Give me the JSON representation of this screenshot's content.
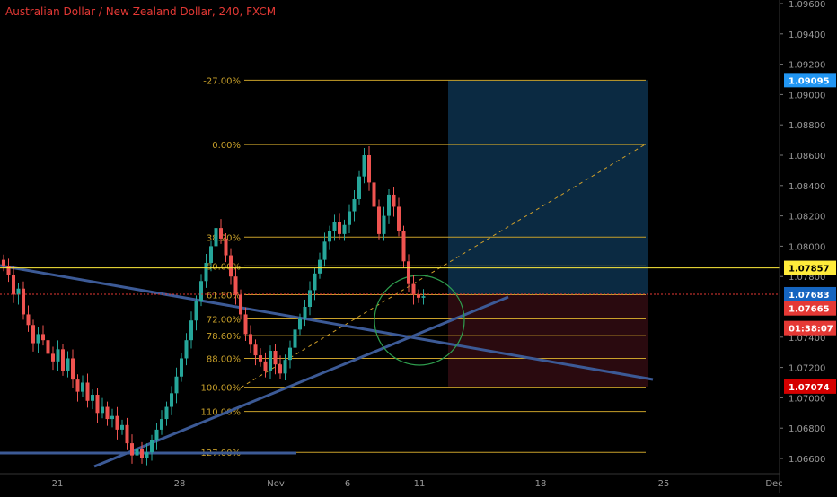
{
  "chart_data": {
    "type": "candlestick",
    "title": "Australian Dollar / New Zealand Dollar, 240, FXCM",
    "ylim": [
      1.065,
      1.097
    ],
    "y_ticks": [
      "1.09600",
      "1.09400",
      "1.09200",
      "1.09000",
      "1.08800",
      "1.08600",
      "1.08400",
      "1.08200",
      "1.08000",
      "1.07800",
      "1.07400",
      "1.07200",
      "1.07000",
      "1.06800",
      "1.06600"
    ],
    "x_ticks": [
      "21",
      "28",
      "Nov",
      "6",
      "11",
      "18",
      "25",
      "Dec"
    ],
    "fib_levels": [
      {
        "label": "-27.00%",
        "price": 1.09095
      },
      {
        "label": "0.00%",
        "price": 1.0867
      },
      {
        "label": "38.20%",
        "price": 1.0806
      },
      {
        "label": "50.00%",
        "price": 1.0787
      },
      {
        "label": "61.80%",
        "price": 1.0768
      },
      {
        "label": "72.00%",
        "price": 1.0752
      },
      {
        "label": "78.60%",
        "price": 1.0741
      },
      {
        "label": "88.00%",
        "price": 1.0726
      },
      {
        "label": "100.00%",
        "price": 1.0707
      },
      {
        "label": "110.00%",
        "price": 1.0691
      },
      {
        "label": "127.00%",
        "price": 1.0664
      }
    ],
    "price_labels": [
      {
        "text": "1.09095",
        "price": 1.09095,
        "color": "#2196f3"
      },
      {
        "text": "1.07857",
        "price": 1.07857,
        "color": "#ffeb3b"
      },
      {
        "text": "1.07683",
        "price": 1.07683,
        "color": "#1565c0"
      },
      {
        "text": "1.07665",
        "price": 1.0759,
        "color": "#e53935"
      },
      {
        "text": "01:38:07",
        "price": 1.0746,
        "color": "#e53935"
      },
      {
        "text": "1.07074",
        "price": 1.07074,
        "color": "#d50000"
      }
    ],
    "colors": {
      "up": "#26a69a",
      "down": "#ef5350",
      "fib": "#c8a02a",
      "fib_text": "#c8a02a",
      "trendline": "#3c5a96",
      "target_zone": "#0b2a42",
      "stop_zone": "#2a0a0f",
      "circle": "#2e9e4e",
      "hline": "#ffeb3b"
    },
    "closes": [
      1.0787,
      1.0781,
      1.0768,
      1.0772,
      1.0755,
      1.0748,
      1.0736,
      1.0742,
      1.0738,
      1.0729,
      1.0724,
      1.0732,
      1.0718,
      1.0726,
      1.0712,
      1.0704,
      1.071,
      1.0698,
      1.0702,
      1.069,
      1.0694,
      1.0686,
      1.0688,
      1.0679,
      1.0682,
      1.067,
      1.0662,
      1.0666,
      1.066,
      1.0664,
      1.0672,
      1.0679,
      1.0686,
      1.0694,
      1.0703,
      1.0714,
      1.0726,
      1.0738,
      1.0751,
      1.0764,
      1.0777,
      1.0789,
      1.08,
      1.0812,
      1.0805,
      1.0794,
      1.078,
      1.0768,
      1.0755,
      1.0742,
      1.0735,
      1.0728,
      1.0724,
      1.0718,
      1.0731,
      1.0722,
      1.0716,
      1.0725,
      1.0733,
      1.0745,
      1.0752,
      1.076,
      1.0771,
      1.0782,
      1.0791,
      1.0803,
      1.081,
      1.0816,
      1.0808,
      1.0814,
      1.0823,
      1.0831,
      1.0846,
      1.086,
      1.0842,
      1.0826,
      1.0808,
      1.082,
      1.0834,
      1.0826,
      1.081,
      1.079,
      1.0775,
      1.0768,
      1.0766,
      1.0767
    ]
  }
}
